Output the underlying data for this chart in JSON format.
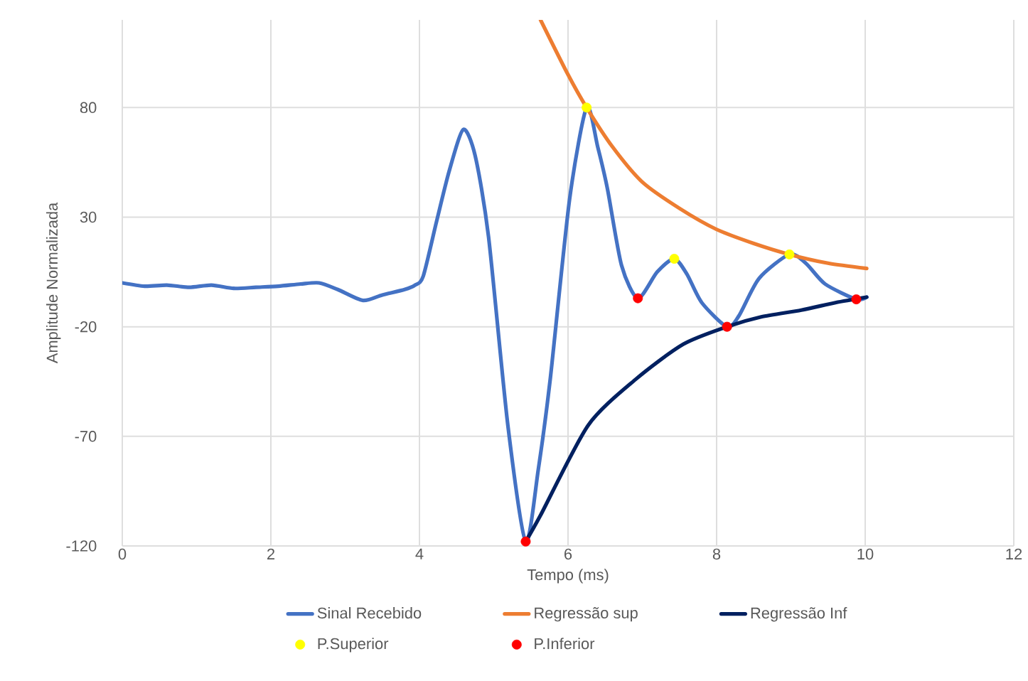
{
  "chart_data": {
    "type": "line",
    "xlabel": "Tempo  (ms)",
    "ylabel": "Amplitude Normalizada",
    "xlim": [
      0,
      12
    ],
    "xticks": [
      0,
      2,
      4,
      6,
      8,
      10,
      12
    ],
    "ylim": [
      -120,
      120
    ],
    "yticks": [
      -120,
      -70,
      -20,
      30,
      80
    ],
    "grid": true,
    "legend": "bottom",
    "series": [
      {
        "name": "Sinal Recebido",
        "color": "#4472c4",
        "marker": "none",
        "x": [
          0,
          0.3,
          0.6,
          0.9,
          1.2,
          1.5,
          1.8,
          2.1,
          2.4,
          2.65,
          2.9,
          3.24,
          3.5,
          3.8,
          3.94,
          4.05,
          4.23,
          4.4,
          4.59,
          4.75,
          4.93,
          5.19,
          5.43,
          5.6,
          5.76,
          6.02,
          6.25,
          6.4,
          6.53,
          6.72,
          6.94,
          7.2,
          7.43,
          7.6,
          7.8,
          8.14,
          8.3,
          8.57,
          8.98,
          9.2,
          9.46,
          9.88,
          10.02
        ],
        "values": [
          0,
          -1.5,
          -1,
          -2,
          -1,
          -2.5,
          -2,
          -1.5,
          -0.5,
          0,
          -3,
          -8,
          -5.5,
          -3,
          -1,
          3,
          28,
          51,
          70,
          58,
          21,
          -65,
          -118,
          -85,
          -44,
          38,
          80,
          62,
          43,
          8,
          -7,
          5,
          11,
          4,
          -9,
          -20,
          -15,
          2,
          13,
          9,
          -0.5,
          -7.5,
          -6.5
        ]
      },
      {
        "name": "Regressão sup",
        "color": "#ed7d31",
        "marker": "none",
        "x": [
          5.63,
          6.0,
          6.25,
          6.6,
          7.0,
          7.5,
          8.0,
          8.5,
          8.98,
          9.5,
          10.02
        ],
        "values": [
          120,
          95,
          80,
          62,
          46,
          34,
          24.4,
          18,
          13,
          9,
          6.6
        ]
      },
      {
        "name": "Regressão Inf",
        "color": "#002060",
        "marker": "none",
        "x": [
          5.43,
          5.63,
          6.27,
          6.91,
          7.55,
          8.14,
          8.6,
          9.14,
          9.6,
          10.02
        ],
        "values": [
          -118,
          -106,
          -65,
          -44,
          -28,
          -20,
          -15.5,
          -12.4,
          -9,
          -6.5
        ]
      },
      {
        "name": "P.Superior",
        "type": "scatter",
        "color": "#ffff00",
        "marker": "circle",
        "x": [
          6.25,
          7.43,
          8.98
        ],
        "values": [
          80,
          11,
          13
        ]
      },
      {
        "name": "P.Inferior",
        "type": "scatter",
        "color": "#ff0000",
        "marker": "circle",
        "x": [
          5.43,
          6.94,
          8.14,
          9.88
        ],
        "values": [
          -118,
          -7,
          -20,
          -7.5
        ]
      }
    ]
  }
}
